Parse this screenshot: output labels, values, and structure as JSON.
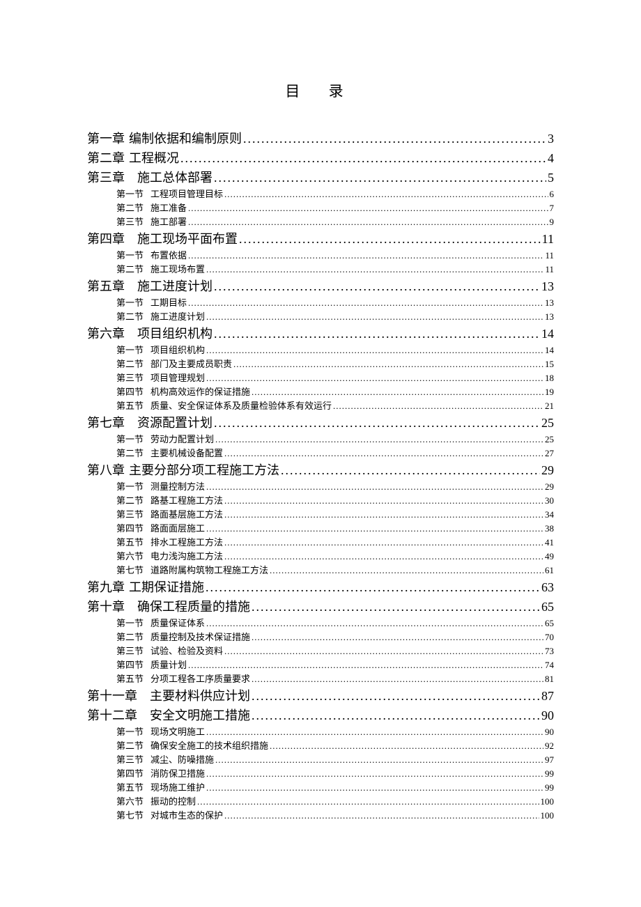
{
  "title": "目 录",
  "entries": [
    {
      "level": "chapter",
      "label": "第一章",
      "text": "编制依据和编制原则",
      "page": "3"
    },
    {
      "level": "chapter",
      "label": "第二章",
      "text": "工程概况",
      "page": "4"
    },
    {
      "level": "chapter",
      "label": "第三章",
      "text": "施工总体部署",
      "page": "5",
      "gap": true
    },
    {
      "level": "section",
      "label": "第一节",
      "text": "工程项目管理目标",
      "page": "6"
    },
    {
      "level": "section",
      "label": "第二节",
      "text": "施工准备",
      "page": "7"
    },
    {
      "level": "section",
      "label": "第三节",
      "text": "施工部署",
      "page": "9"
    },
    {
      "level": "chapter",
      "label": "第四章",
      "text": "施工现场平面布置",
      "page": "11",
      "gap": true
    },
    {
      "level": "section",
      "label": "第一节",
      "text": "布置依据",
      "page": "11"
    },
    {
      "level": "section",
      "label": "第二节",
      "text": "施工现场布置",
      "page": "11"
    },
    {
      "level": "chapter",
      "label": "第五章",
      "text": "施工进度计划",
      "page": "13",
      "gap": true
    },
    {
      "level": "section",
      "label": "第一节",
      "text": "工期目标",
      "page": "13"
    },
    {
      "level": "section",
      "label": "第二节",
      "text": "施工进度计划",
      "page": "13"
    },
    {
      "level": "chapter",
      "label": "第六章",
      "text": "项目组织机构",
      "page": "14",
      "gap": true
    },
    {
      "level": "section",
      "label": "第一节",
      "text": "项目组织机构",
      "page": "14"
    },
    {
      "level": "section",
      "label": "第二节",
      "text": "部门及主要成员职责",
      "page": "15"
    },
    {
      "level": "section",
      "label": "第三节",
      "text": "项目管理规划",
      "page": "18"
    },
    {
      "level": "section",
      "label": "第四节",
      "text": "机构高效运作的保证措施",
      "page": "19"
    },
    {
      "level": "section",
      "label": "第五节",
      "text": "质量、安全保证体系及质量检验体系有效运行",
      "page": "21"
    },
    {
      "level": "chapter",
      "label": "第七章",
      "text": "资源配置计划",
      "page": "25",
      "gap": true
    },
    {
      "level": "section",
      "label": "第一节",
      "text": "劳动力配置计划",
      "page": "25"
    },
    {
      "level": "section",
      "label": "第二节",
      "text": "主要机械设备配置",
      "page": "27"
    },
    {
      "level": "chapter",
      "label": "第八章",
      "text": "主要分部分项工程施工方法",
      "page": "29"
    },
    {
      "level": "section",
      "label": "第一节",
      "text": "测量控制方法",
      "page": "29"
    },
    {
      "level": "section",
      "label": "第二节",
      "text": "路基工程施工方法",
      "page": "30"
    },
    {
      "level": "section",
      "label": "第三节",
      "text": "路面基层施工方法",
      "page": "34"
    },
    {
      "level": "section",
      "label": "第四节",
      "text": "路面面层施工",
      "page": "38"
    },
    {
      "level": "section",
      "label": "第五节",
      "text": "排水工程施工方法",
      "page": "41"
    },
    {
      "level": "section",
      "label": "第六节",
      "text": "电力浅沟施工方法",
      "page": "49"
    },
    {
      "level": "section",
      "label": "第七节",
      "text": "道路附属构筑物工程施工方法",
      "page": "61"
    },
    {
      "level": "chapter",
      "label": "第九章",
      "text": "工期保证措施",
      "page": "63"
    },
    {
      "level": "chapter",
      "label": "第十章",
      "text": "确保工程质量的措施",
      "page": "65",
      "gap": true
    },
    {
      "level": "section",
      "label": "第一节",
      "text": "质量保证体系",
      "page": "65"
    },
    {
      "level": "section",
      "label": "第二节",
      "text": "质量控制及技术保证措施",
      "page": "70"
    },
    {
      "level": "section",
      "label": "第三节",
      "text": "试验、检验及资料",
      "page": "73"
    },
    {
      "level": "section",
      "label": "第四节",
      "text": "质量计划",
      "page": "74"
    },
    {
      "level": "section",
      "label": "第五节",
      "text": "分项工程各工序质量要求",
      "page": "81"
    },
    {
      "level": "chapter",
      "label": "第十一章",
      "text": "主要材料供应计划",
      "page": "87",
      "gap": true
    },
    {
      "level": "chapter",
      "label": "第十二章",
      "text": "安全文明施工措施",
      "page": "90",
      "gap": true
    },
    {
      "level": "section",
      "label": "第一节",
      "text": "现场文明施工",
      "page": "90"
    },
    {
      "level": "section",
      "label": "第二节",
      "text": "确保安全施工的技术组织措施",
      "page": "92"
    },
    {
      "level": "section",
      "label": "第三节",
      "text": "减尘、防噪措施",
      "page": "97"
    },
    {
      "level": "section",
      "label": "第四节",
      "text": "消防保卫措施",
      "page": "99"
    },
    {
      "level": "section",
      "label": "第五节",
      "text": "现场施工维护",
      "page": "99"
    },
    {
      "level": "section",
      "label": "第六节",
      "text": "振动的控制",
      "page": "100"
    },
    {
      "level": "section",
      "label": "第七节",
      "text": "对城市生态的保护",
      "page": "100"
    }
  ]
}
